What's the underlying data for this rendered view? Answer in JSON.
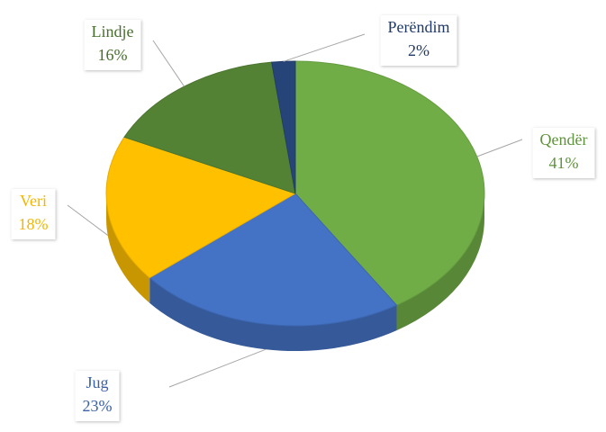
{
  "chart_data": {
    "type": "pie",
    "categories": [
      "Qendër",
      "Jug",
      "Veri",
      "Lindje",
      "Perëndim"
    ],
    "values": [
      41,
      23,
      18,
      16,
      2
    ],
    "value_labels": [
      "41%",
      "23%",
      "18%",
      "16%",
      "2%"
    ],
    "colors": [
      "#70ad47",
      "#4472c4",
      "#ffc000",
      "#548235",
      "#264478"
    ]
  }
}
